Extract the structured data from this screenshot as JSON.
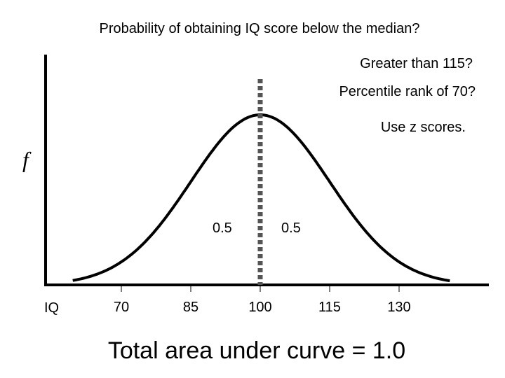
{
  "questions": {
    "median": "Probability of obtaining IQ score below the median?",
    "greater": "Greater than 115?",
    "percentile": "Percentile rank of 70?",
    "method": "Use z scores."
  },
  "axis": {
    "y_label": "f",
    "x_label": "IQ",
    "ticks": [
      {
        "value": 70,
        "label": "70"
      },
      {
        "value": 85,
        "label": "85"
      },
      {
        "value": 100,
        "label": "100"
      },
      {
        "value": 115,
        "label": "115"
      },
      {
        "value": 130,
        "label": "130"
      }
    ]
  },
  "distribution": {
    "mean": 100,
    "sd": 15,
    "median": 100
  },
  "areas": {
    "left": "0.5",
    "right": "0.5"
  },
  "total": "Total area under curve = 1.0",
  "colors": {
    "curve": "#000000",
    "median_line": "#555555"
  }
}
